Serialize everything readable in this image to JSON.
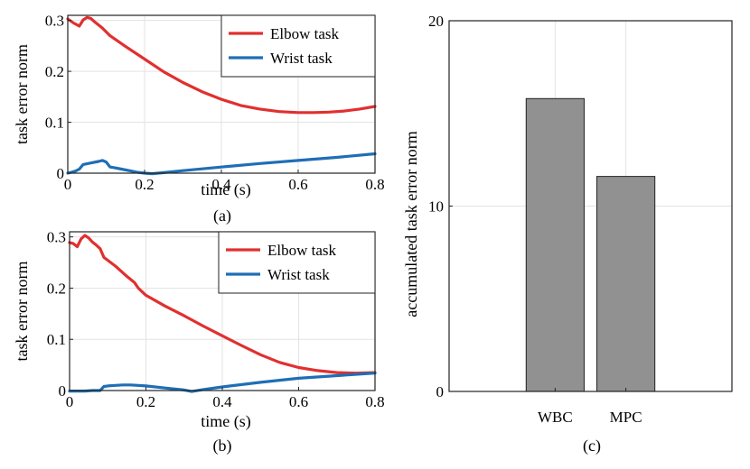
{
  "chart_data": [
    {
      "type": "line",
      "panel_label": "(a)",
      "xlabel": "time (s)",
      "ylabel": "task error norm",
      "xlim": [
        0,
        0.8
      ],
      "ylim": [
        0,
        0.31
      ],
      "xticks": [
        0,
        0.2,
        0.4,
        0.6,
        0.8
      ],
      "xtick_labels": [
        "0",
        "0.2",
        "0.4",
        "0.6",
        "0.8"
      ],
      "yticks": [
        0,
        0.1,
        0.2,
        0.3
      ],
      "ytick_labels": [
        "0",
        "0.1",
        "0.2",
        "0.3"
      ],
      "grid": true,
      "legend": "top-right",
      "series": [
        {
          "name": "Elbow task",
          "color": "#e0302f",
          "x": [
            0,
            0.015,
            0.03,
            0.04,
            0.05,
            0.06,
            0.07,
            0.09,
            0.11,
            0.15,
            0.2,
            0.25,
            0.3,
            0.35,
            0.4,
            0.45,
            0.5,
            0.55,
            0.6,
            0.64,
            0.68,
            0.72,
            0.76,
            0.8
          ],
          "y": [
            0.303,
            0.295,
            0.289,
            0.301,
            0.306,
            0.304,
            0.297,
            0.285,
            0.27,
            0.249,
            0.224,
            0.199,
            0.178,
            0.16,
            0.145,
            0.133,
            0.126,
            0.121,
            0.119,
            0.119,
            0.12,
            0.122,
            0.126,
            0.131
          ]
        },
        {
          "name": "Wrist task",
          "color": "#1f6eb5",
          "x": [
            0,
            0.01,
            0.02,
            0.03,
            0.04,
            0.06,
            0.08,
            0.09,
            0.1,
            0.11,
            0.12,
            0.14,
            0.16,
            0.18,
            0.2,
            0.22,
            0.25,
            0.3,
            0.4,
            0.5,
            0.6,
            0.7,
            0.8
          ],
          "y": [
            0.0,
            0.002,
            0.004,
            0.008,
            0.017,
            0.02,
            0.023,
            0.025,
            0.022,
            0.012,
            0.011,
            0.008,
            0.005,
            0.002,
            0.0,
            -0.001,
            0.001,
            0.005,
            0.012,
            0.019,
            0.025,
            0.031,
            0.038
          ]
        }
      ]
    },
    {
      "type": "line",
      "panel_label": "(b)",
      "xlabel": "time (s)",
      "ylabel": "task error norm",
      "xlim": [
        0,
        0.8
      ],
      "ylim": [
        0,
        0.31
      ],
      "xticks": [
        0,
        0.2,
        0.4,
        0.6,
        0.8
      ],
      "xtick_labels": [
        "0",
        "0.2",
        "0.4",
        "0.6",
        "0.8"
      ],
      "yticks": [
        0,
        0.1,
        0.2,
        0.3
      ],
      "ytick_labels": [
        "0",
        "0.1",
        "0.2",
        "0.3"
      ],
      "grid": true,
      "legend": "top-right",
      "series": [
        {
          "name": "Elbow task",
          "color": "#e0302f",
          "x": [
            0,
            0.01,
            0.02,
            0.03,
            0.04,
            0.05,
            0.06,
            0.07,
            0.08,
            0.09,
            0.12,
            0.15,
            0.17,
            0.18,
            0.2,
            0.25,
            0.3,
            0.35,
            0.4,
            0.45,
            0.5,
            0.55,
            0.6,
            0.65,
            0.7,
            0.75,
            0.8
          ],
          "y": [
            0.289,
            0.287,
            0.281,
            0.296,
            0.303,
            0.298,
            0.29,
            0.284,
            0.277,
            0.26,
            0.243,
            0.223,
            0.211,
            0.2,
            0.186,
            0.165,
            0.146,
            0.126,
            0.107,
            0.088,
            0.07,
            0.055,
            0.045,
            0.039,
            0.035,
            0.034,
            0.035
          ]
        },
        {
          "name": "Wrist task",
          "color": "#1f6eb5",
          "x": [
            0,
            0.02,
            0.04,
            0.06,
            0.08,
            0.09,
            0.1,
            0.12,
            0.14,
            0.16,
            0.2,
            0.25,
            0.3,
            0.32,
            0.35,
            0.4,
            0.5,
            0.6,
            0.7,
            0.8
          ],
          "y": [
            -0.001,
            -0.001,
            -0.001,
            0.0,
            0.0,
            0.008,
            0.009,
            0.01,
            0.011,
            0.011,
            0.009,
            0.005,
            0.001,
            -0.002,
            0.002,
            0.007,
            0.016,
            0.024,
            0.029,
            0.034
          ]
        }
      ]
    },
    {
      "type": "bar",
      "panel_label": "(c)",
      "ylabel": "accumulated task error norm",
      "categories": [
        "WBC",
        "MPC"
      ],
      "values": [
        15.8,
        11.6
      ],
      "ylim": [
        0,
        20
      ],
      "yticks": [
        0,
        10,
        20
      ],
      "ytick_labels": [
        "0",
        "10",
        "20"
      ],
      "bar_color": "#919191",
      "grid": true
    }
  ]
}
